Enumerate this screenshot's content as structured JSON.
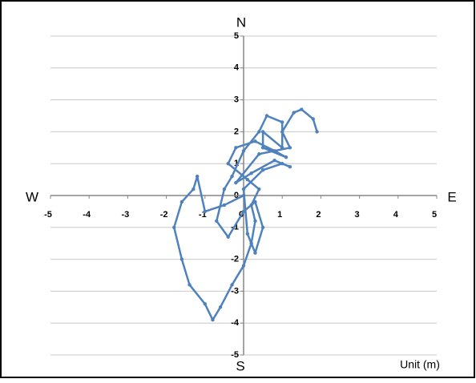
{
  "chart_data": {
    "type": "scatter",
    "directions": {
      "north": "N",
      "south": "S",
      "west": "W",
      "east": "E"
    },
    "unit_label": "Unit (m)",
    "series": [
      {
        "color": "#4f81bd",
        "x": [
          0,
          -0.5,
          -1.0,
          -1.2,
          -1.3,
          -1.6,
          -1.8,
          -1.6,
          -1.4,
          -1.0,
          -0.8,
          -0.6,
          -0.3,
          0,
          0.2,
          0.3,
          0.2,
          0.4,
          0.1,
          -0.4,
          -0.2,
          0.3,
          0.8,
          1.1,
          0.5,
          0.5,
          1.0,
          1.0,
          0.6,
          0.4,
          0,
          -0.3,
          -0.5,
          -0.7,
          -0.4,
          0,
          0.3,
          0.5,
          0.3,
          0.1,
          0,
          0.5,
          1.0,
          1.2,
          0.8,
          0.2,
          -0.2,
          0.4,
          1.2,
          1.0,
          1.3,
          1.5,
          1.8,
          1.9
        ],
        "values": [
          0,
          -0.3,
          -0.5,
          0.6,
          0.2,
          -0.2,
          -1.0,
          -2.0,
          -2.8,
          -3.4,
          -3.9,
          -3.5,
          -2.8,
          -2.2,
          -1.5,
          -0.8,
          -0.3,
          0.2,
          0.5,
          1.0,
          1.5,
          1.7,
          1.4,
          1.2,
          1.5,
          2.0,
          1.5,
          2.3,
          2.5,
          2.0,
          1.4,
          0.6,
          0.2,
          -0.8,
          -1.3,
          -0.5,
          -0.2,
          -1.0,
          -1.8,
          -1.2,
          0.2,
          0.8,
          1.0,
          0.9,
          1.1,
          0.7,
          0.4,
          1.3,
          1.5,
          2.0,
          2.6,
          2.7,
          2.4,
          2.0
        ]
      }
    ],
    "xlim": [
      -5,
      5
    ],
    "ylim": [
      -5,
      5
    ],
    "xticks": [
      -5,
      -4,
      -3,
      -2,
      -1,
      0,
      1,
      2,
      3,
      4,
      5
    ],
    "yticks": [
      -5,
      -4,
      -3,
      -2,
      -1,
      0,
      1,
      2,
      3,
      4,
      5
    ],
    "grid": true
  }
}
